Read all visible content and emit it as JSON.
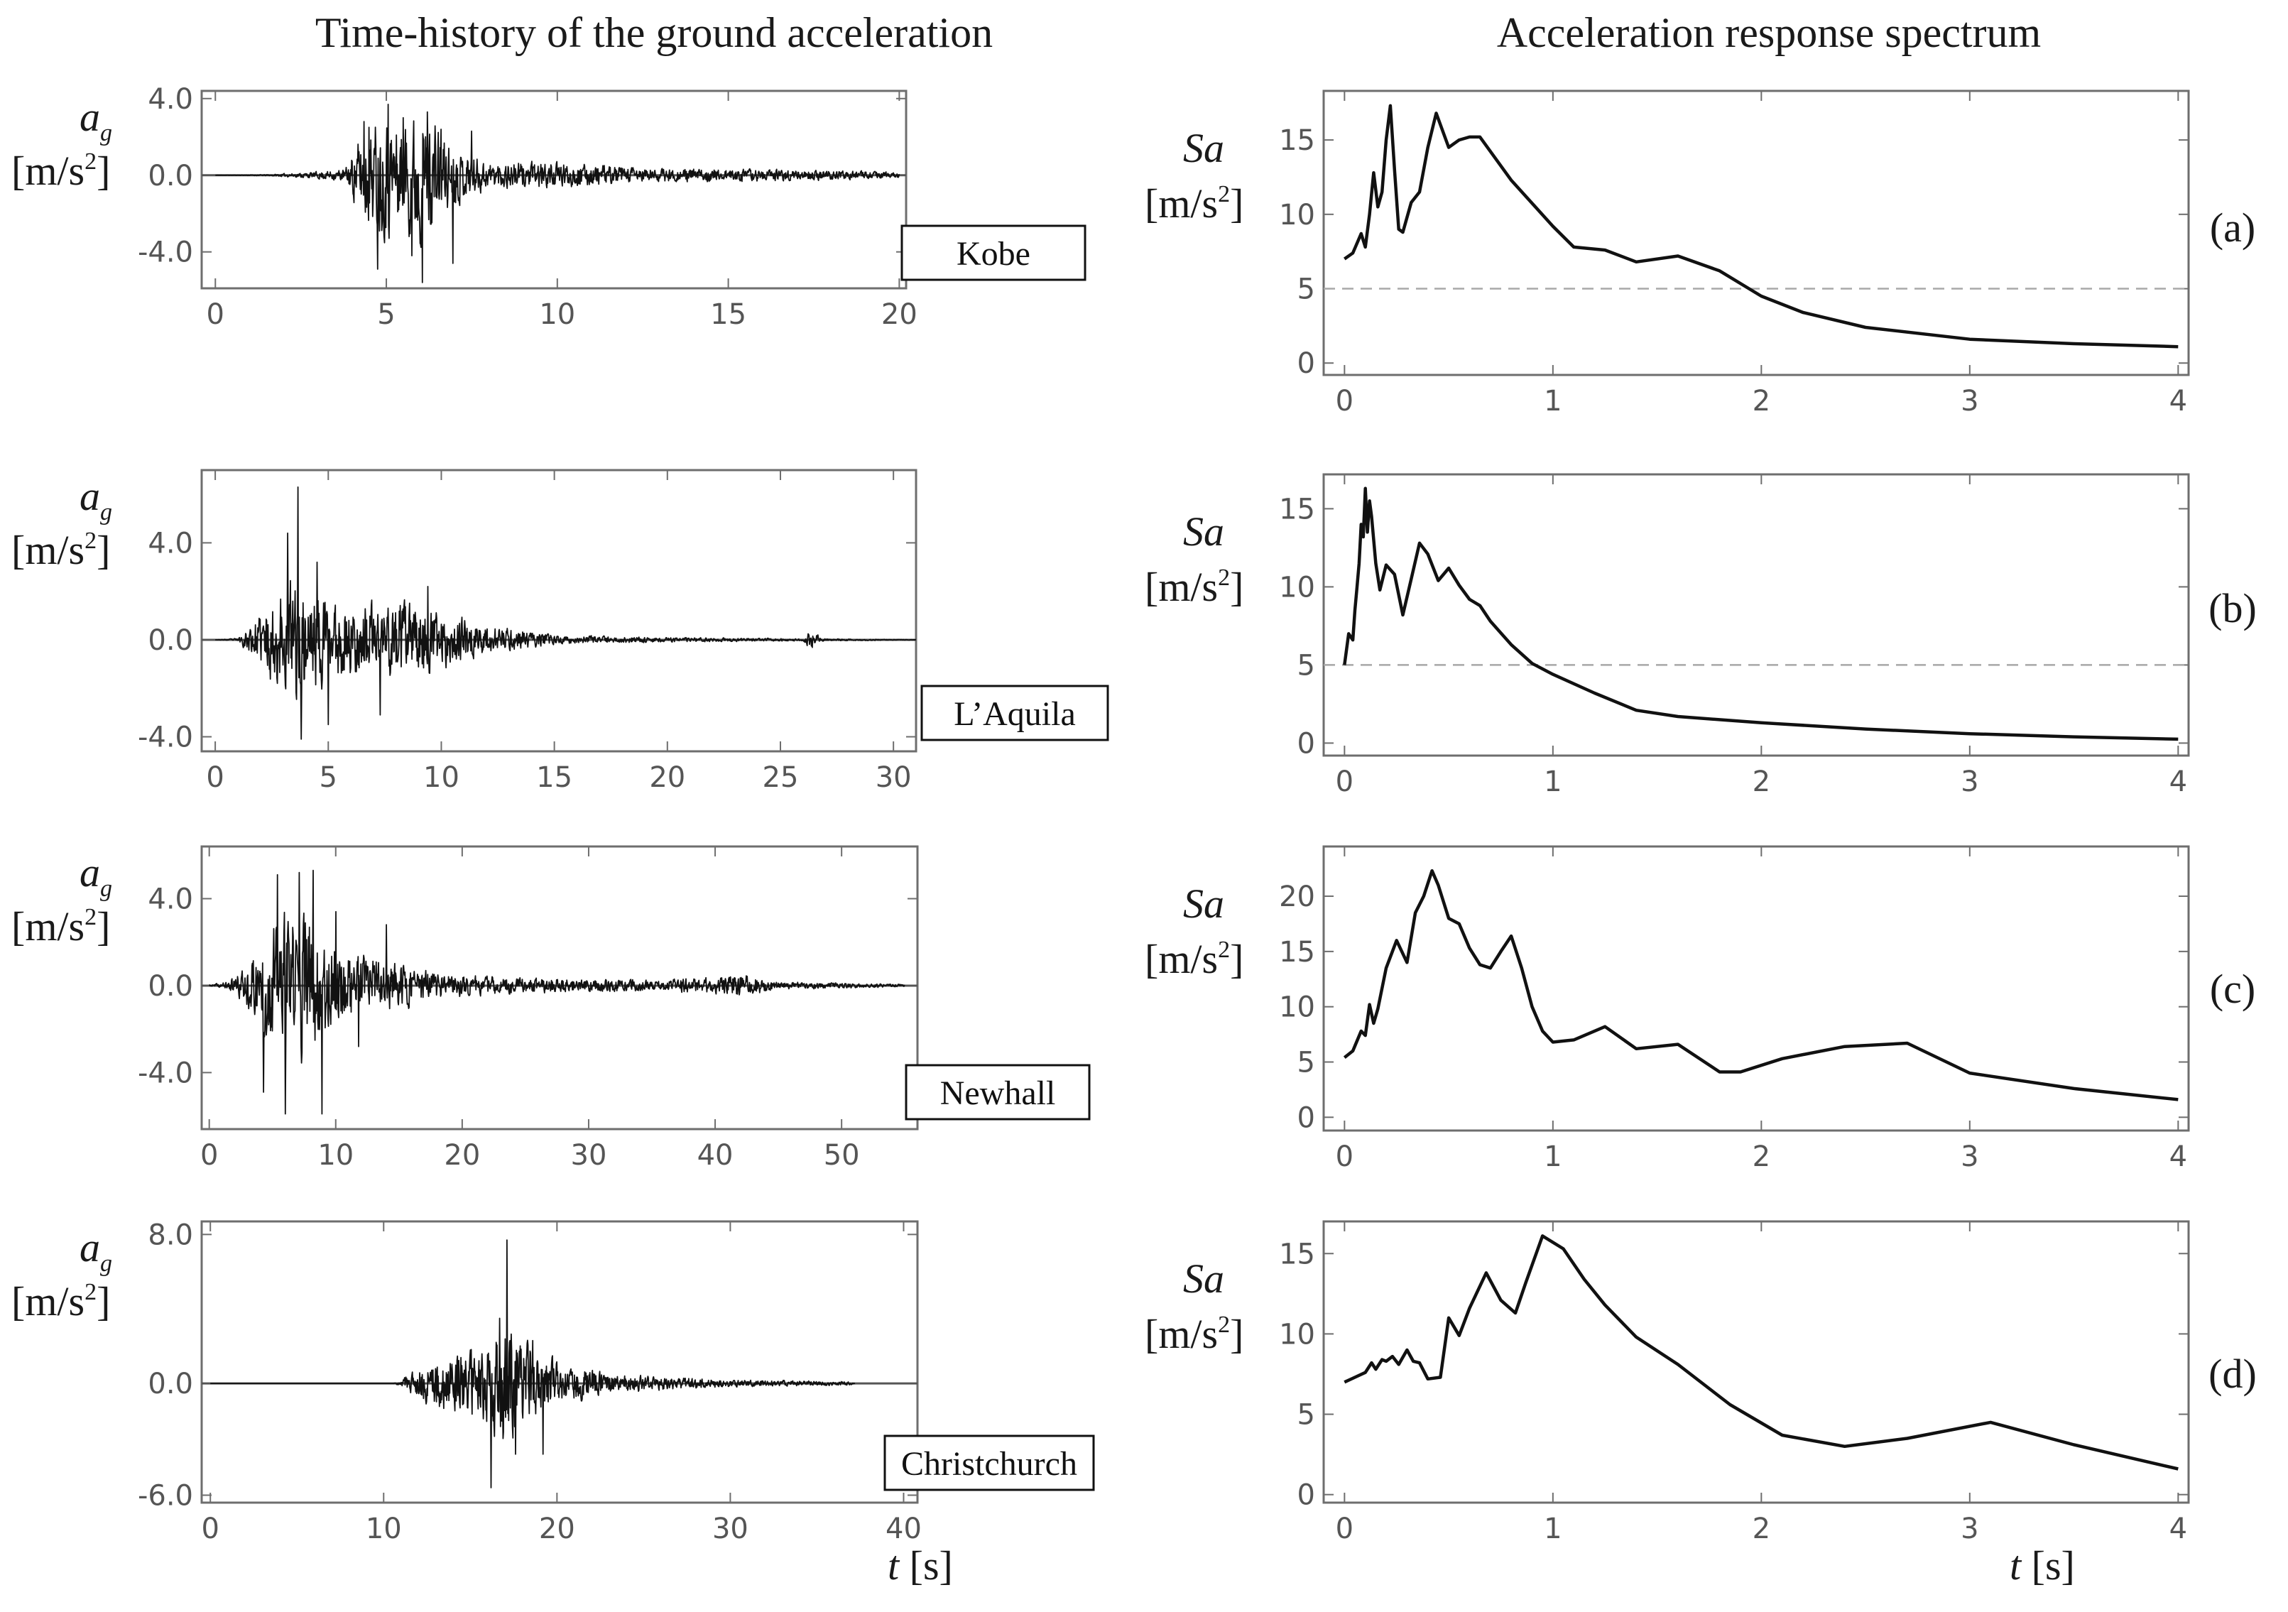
{
  "titles": {
    "left": "Time-history of the ground acceleration",
    "right": "Acceleration response spectrum"
  },
  "labels": {
    "ag_symbol": "a",
    "ag_subscript": "g",
    "unit_open": "[m/s",
    "unit_exp": "2",
    "unit_close": "]",
    "sa_symbol": "Sa",
    "t_symbol": "t",
    "t_unit": " [s]"
  },
  "chart_data": [
    {
      "type": "line",
      "panel": "a-left",
      "record": "Kobe",
      "xlabel": "t [s]",
      "ylabel": "a_g [m/s^2]",
      "xlim": [
        -0.4,
        20.2
      ],
      "ylim": [
        -5.9,
        4.4
      ],
      "xticks": [
        0,
        5,
        10,
        15,
        20
      ],
      "yticks": [
        4.0,
        0.0,
        -4.0
      ],
      "ytick_labels": [
        "4.0",
        "0.0",
        "-4.0"
      ],
      "envelope": [
        [
          0,
          0
        ],
        [
          1.5,
          0.05
        ],
        [
          2.8,
          0.25
        ],
        [
          3.8,
          0.5
        ],
        [
          4.2,
          3
        ],
        [
          4.5,
          4.2
        ],
        [
          5,
          5
        ],
        [
          5.5,
          4.5
        ],
        [
          6,
          5.5
        ],
        [
          6.5,
          4
        ],
        [
          7,
          2.3
        ],
        [
          8,
          1.1
        ],
        [
          10,
          1.0
        ],
        [
          13,
          0.55
        ],
        [
          17,
          0.45
        ],
        [
          20,
          0.25
        ]
      ],
      "peaks": [
        [
          4.35,
          2.8
        ],
        [
          4.5,
          2.5
        ],
        [
          4.75,
          -4.9
        ],
        [
          5.05,
          3.7
        ],
        [
          5.5,
          3.0
        ],
        [
          5.75,
          -4.2
        ],
        [
          6.05,
          -5.6
        ],
        [
          6.2,
          3.3
        ],
        [
          6.6,
          2.4
        ],
        [
          6.95,
          -4.6
        ],
        [
          7.5,
          2.3
        ]
      ],
      "seed": 11
    },
    {
      "type": "line",
      "panel": "a-right",
      "record": "Kobe",
      "xlabel": "t [s]",
      "ylabel": "Sa [m/s^2]",
      "xlim": [
        -0.1,
        4.05
      ],
      "ylim": [
        -0.8,
        18.3
      ],
      "xticks": [
        0,
        1,
        2,
        3,
        4
      ],
      "yticks": [
        0,
        5,
        10,
        15
      ],
      "reference": 5,
      "x": [
        0,
        0.04,
        0.08,
        0.1,
        0.12,
        0.14,
        0.16,
        0.18,
        0.2,
        0.22,
        0.24,
        0.26,
        0.28,
        0.32,
        0.36,
        0.4,
        0.44,
        0.5,
        0.55,
        0.6,
        0.65,
        0.8,
        1,
        1.1,
        1.25,
        1.4,
        1.6,
        1.8,
        2,
        2.2,
        2.5,
        3,
        3.5,
        4
      ],
      "y": [
        7,
        7.4,
        8.7,
        7.8,
        10,
        12.8,
        10.5,
        11.5,
        15,
        17.3,
        13,
        9,
        8.8,
        10.8,
        11.5,
        14.5,
        16.8,
        14.5,
        15,
        15.2,
        15.2,
        12.3,
        9.2,
        7.8,
        7.6,
        6.8,
        7.2,
        6.2,
        4.5,
        3.4,
        2.4,
        1.6,
        1.3,
        1.1
      ]
    },
    {
      "type": "line",
      "panel": "b-left",
      "record": "L’Aquila",
      "xlabel": "t [s]",
      "ylabel": "a_g [m/s^2]",
      "xlim": [
        -0.6,
        31
      ],
      "ylim": [
        -4.6,
        7.0
      ],
      "xticks": [
        0,
        5,
        10,
        15,
        20,
        25,
        30
      ],
      "yticks": [
        4.0,
        0.0,
        -4.0
      ],
      "ytick_labels": [
        "4.0",
        "0.0",
        "-4.0"
      ],
      "envelope": [
        [
          0,
          0
        ],
        [
          1,
          0.1
        ],
        [
          2,
          1.6
        ],
        [
          3,
          3.6
        ],
        [
          3.5,
          4.2
        ],
        [
          5,
          2.6
        ],
        [
          7,
          2.4
        ],
        [
          8,
          2.6
        ],
        [
          10,
          1.8
        ],
        [
          12,
          0.9
        ],
        [
          15,
          0.3
        ],
        [
          20,
          0.15
        ],
        [
          26,
          0.08
        ],
        [
          26.4,
          0.7
        ],
        [
          26.8,
          0.08
        ],
        [
          31,
          0.02
        ]
      ],
      "peaks": [
        [
          3.2,
          4.4
        ],
        [
          3.65,
          6.3
        ],
        [
          3.8,
          -4.1
        ],
        [
          4.5,
          3.2
        ],
        [
          5,
          -3.5
        ],
        [
          7.3,
          -3.1
        ],
        [
          9.4,
          2.2
        ]
      ],
      "seed": 23
    },
    {
      "type": "line",
      "panel": "b-right",
      "record": "L’Aquila",
      "xlabel": "t [s]",
      "ylabel": "Sa [m/s^2]",
      "xlim": [
        -0.1,
        4.05
      ],
      "ylim": [
        -0.8,
        17.2
      ],
      "xticks": [
        0,
        1,
        2,
        3,
        4
      ],
      "yticks": [
        0,
        5,
        10,
        15
      ],
      "reference": 5,
      "x": [
        0,
        0.02,
        0.04,
        0.05,
        0.06,
        0.07,
        0.08,
        0.09,
        0.1,
        0.11,
        0.12,
        0.13,
        0.15,
        0.17,
        0.2,
        0.24,
        0.28,
        0.32,
        0.36,
        0.4,
        0.45,
        0.5,
        0.55,
        0.6,
        0.65,
        0.7,
        0.8,
        0.9,
        1,
        1.2,
        1.4,
        1.6,
        2,
        2.5,
        3,
        3.5,
        4
      ],
      "y": [
        5,
        7,
        6.6,
        8.5,
        10,
        11.5,
        14,
        13.2,
        16.3,
        13.5,
        15.5,
        14.5,
        11.5,
        9.8,
        11.4,
        10.8,
        8.2,
        10.5,
        12.8,
        12.1,
        10.4,
        11.2,
        10.1,
        9.2,
        8.8,
        7.8,
        6.3,
        5.1,
        4.4,
        3.2,
        2.1,
        1.7,
        1.3,
        0.9,
        0.6,
        0.4,
        0.25
      ]
    },
    {
      "type": "line",
      "panel": "c-left",
      "record": "Newhall",
      "xlabel": "t [s]",
      "ylabel": "a_g [m/s^2]",
      "xlim": [
        -0.6,
        56
      ],
      "ylim": [
        -6.6,
        6.4
      ],
      "xticks": [
        0,
        10,
        20,
        30,
        40,
        50
      ],
      "yticks": [
        4.0,
        0.0,
        -4.0
      ],
      "ytick_labels": [
        "4.0",
        "0.0",
        "-4.0"
      ],
      "envelope": [
        [
          0,
          0.05
        ],
        [
          1.5,
          0.3
        ],
        [
          3,
          1.5
        ],
        [
          4.5,
          4.2
        ],
        [
          6,
          5
        ],
        [
          8,
          5.3
        ],
        [
          9.5,
          3.3
        ],
        [
          12,
          2.2
        ],
        [
          15,
          1.6
        ],
        [
          19,
          0.8
        ],
        [
          25,
          0.55
        ],
        [
          35,
          0.4
        ],
        [
          40,
          0.6
        ],
        [
          42,
          0.9
        ],
        [
          45,
          0.3
        ],
        [
          55,
          0.1
        ]
      ],
      "peaks": [
        [
          4.3,
          -4.9
        ],
        [
          5.4,
          5.1
        ],
        [
          6,
          -5.9
        ],
        [
          7.1,
          5.2
        ],
        [
          8.2,
          5.3
        ],
        [
          8.9,
          -5.9
        ],
        [
          10,
          3.4
        ],
        [
          11.8,
          -2.8
        ],
        [
          14,
          2.8
        ]
      ],
      "seed": 37
    },
    {
      "type": "line",
      "panel": "c-right",
      "record": "Newhall",
      "xlabel": "t [s]",
      "ylabel": "Sa [m/s^2]",
      "xlim": [
        -0.1,
        4.05
      ],
      "ylim": [
        -1.2,
        24.5
      ],
      "xticks": [
        0,
        1,
        2,
        3,
        4
      ],
      "yticks": [
        0,
        5,
        10,
        15,
        20
      ],
      "x": [
        0,
        0.04,
        0.08,
        0.1,
        0.12,
        0.14,
        0.16,
        0.2,
        0.25,
        0.3,
        0.34,
        0.38,
        0.42,
        0.45,
        0.5,
        0.55,
        0.6,
        0.65,
        0.7,
        0.75,
        0.8,
        0.85,
        0.9,
        0.95,
        1,
        1.1,
        1.25,
        1.4,
        1.6,
        1.8,
        1.9,
        2.1,
        2.4,
        2.7,
        3,
        3.5,
        4
      ],
      "y": [
        5.4,
        6,
        7.8,
        7.4,
        10.2,
        8.5,
        9.8,
        13.5,
        16,
        14,
        18.5,
        20,
        22.3,
        21,
        18,
        17.5,
        15.3,
        13.8,
        13.5,
        15,
        16.4,
        13.5,
        10,
        7.8,
        6.8,
        7,
        8.2,
        6.2,
        6.6,
        4.1,
        4.1,
        5.3,
        6.4,
        6.7,
        4,
        2.6,
        1.6
      ]
    },
    {
      "type": "line",
      "panel": "d-left",
      "record": "Christchurch",
      "xlabel": "t [s]",
      "ylabel": "a_g [m/s^2]",
      "xlim": [
        -0.5,
        40.8
      ],
      "ylim": [
        -6.4,
        8.7
      ],
      "xticks": [
        0,
        10,
        20,
        30,
        40
      ],
      "yticks": [
        8.0,
        0.0,
        -6.0
      ],
      "ytick_labels": [
        "8.0",
        "0.0",
        "-6.0"
      ],
      "envelope": [
        [
          0,
          0
        ],
        [
          10.5,
          0
        ],
        [
          11,
          0.2
        ],
        [
          12,
          1.4
        ],
        [
          14,
          2.5
        ],
        [
          16,
          3.4
        ],
        [
          17,
          5.5
        ],
        [
          18,
          3.5
        ],
        [
          19,
          2.5
        ],
        [
          20,
          1.8
        ],
        [
          21.5,
          1.3
        ],
        [
          23,
          0.8
        ],
        [
          26,
          0.55
        ],
        [
          30,
          0.3
        ],
        [
          35,
          0.2
        ],
        [
          37,
          0.15
        ],
        [
          37.2,
          0
        ]
      ],
      "peaks": [
        [
          16.2,
          -5.6
        ],
        [
          17.1,
          7.7
        ],
        [
          17.6,
          -3.8
        ],
        [
          16.7,
          3.5
        ],
        [
          18.6,
          2.3
        ],
        [
          19.2,
          -3.8
        ]
      ],
      "seed": 51
    },
    {
      "type": "line",
      "panel": "d-right",
      "record": "Christchurch",
      "xlabel": "t [s]",
      "ylabel": "Sa [m/s^2]",
      "xlim": [
        -0.1,
        4.05
      ],
      "ylim": [
        -0.5,
        17
      ],
      "xticks": [
        0,
        1,
        2,
        3,
        4
      ],
      "yticks": [
        0,
        5,
        10,
        15
      ],
      "x": [
        0,
        0.05,
        0.1,
        0.13,
        0.15,
        0.18,
        0.2,
        0.23,
        0.26,
        0.3,
        0.33,
        0.36,
        0.4,
        0.46,
        0.5,
        0.55,
        0.6,
        0.68,
        0.75,
        0.82,
        0.87,
        0.95,
        1.05,
        1.15,
        1.25,
        1.4,
        1.6,
        1.85,
        2.1,
        2.4,
        2.7,
        3.1,
        3.5,
        4
      ],
      "y": [
        7,
        7.3,
        7.6,
        8.2,
        7.8,
        8.4,
        8.3,
        8.6,
        8.1,
        9,
        8.3,
        8.2,
        7.2,
        7.3,
        11,
        9.9,
        11.6,
        13.8,
        12.1,
        11.3,
        13.2,
        16.1,
        15.3,
        13.4,
        11.8,
        9.8,
        8.1,
        5.6,
        3.7,
        3,
        3.5,
        4.5,
        3.1,
        1.6
      ]
    }
  ],
  "panel_letters": [
    "(a)",
    "(b)",
    "(c)",
    "(d)"
  ]
}
